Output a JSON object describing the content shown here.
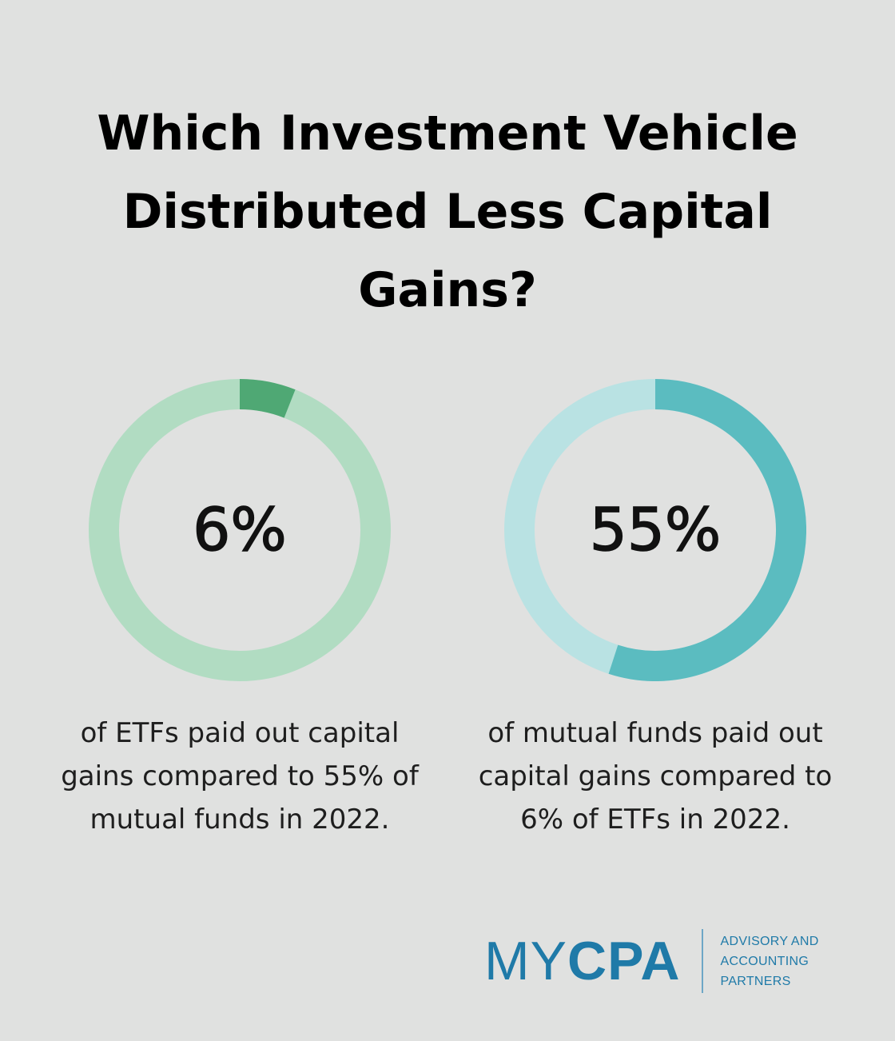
{
  "title": "Which Investment Vehicle Distributed Less Capital Gains?",
  "chart_data": [
    {
      "type": "pie",
      "variant": "donut",
      "value_percent": 6,
      "label": "6%",
      "caption": "of ETFs paid out capital gains compared to 55% of mutual funds in 2022.",
      "colors": {
        "filled": "#4fa874",
        "track": "#b1dcc2"
      }
    },
    {
      "type": "pie",
      "variant": "donut",
      "value_percent": 55,
      "label": "55%",
      "caption": "of mutual funds paid out capital gains compared to 6% of ETFs in 2022.",
      "colors": {
        "filled": "#5bbcc0",
        "track": "#b9e2e3"
      }
    }
  ],
  "logo": {
    "my": "MY",
    "cpa": "CPA",
    "tagline": [
      "ADVISORY AND",
      "ACCOUNTING",
      "PARTNERS"
    ]
  },
  "colors": {
    "background": "#e0e1e0",
    "brand": "#1f7aa8"
  }
}
